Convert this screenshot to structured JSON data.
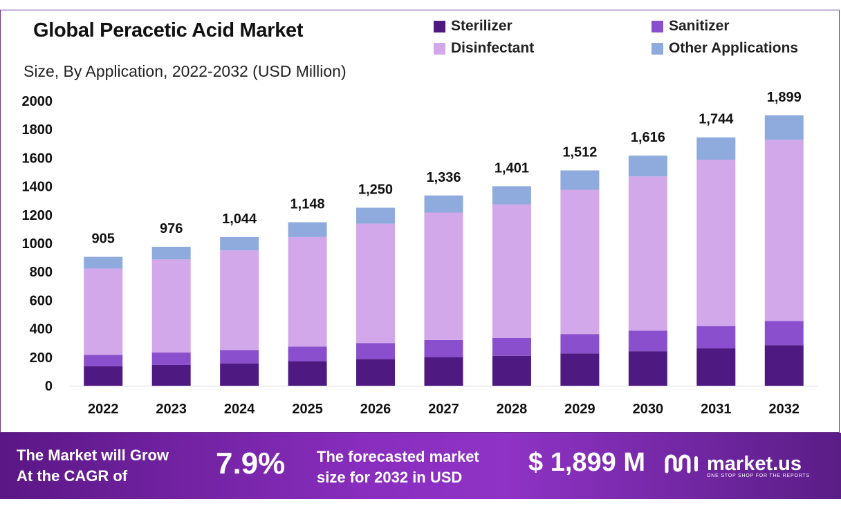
{
  "chart_data": {
    "type": "bar",
    "stacked": true,
    "title": "Global Peracetic Acid Market",
    "subtitle": "Size, By Application, 2022-2032 (USD Million)",
    "xlabel": "",
    "ylabel": "",
    "ylim": [
      0,
      2000
    ],
    "yticks": [
      0,
      200,
      400,
      600,
      800,
      1000,
      1200,
      1400,
      1600,
      1800,
      2000
    ],
    "categories": [
      "2022",
      "2023",
      "2024",
      "2025",
      "2026",
      "2027",
      "2028",
      "2029",
      "2030",
      "2031",
      "2032"
    ],
    "series": [
      {
        "name": "Sterilizer",
        "color": "#4e1a82",
        "values": [
          136,
          146,
          157,
          172,
          188,
          201,
          210,
          227,
          242,
          262,
          285
        ]
      },
      {
        "name": "Sanitizer",
        "color": "#8a4fcc",
        "values": [
          81,
          88,
          94,
          103,
          112,
          120,
          126,
          136,
          145,
          157,
          170
        ]
      },
      {
        "name": "Disinfectant",
        "color": "#d2a8ea",
        "values": [
          606,
          653,
          699,
          769,
          838,
          895,
          938,
          1013,
          1083,
          1168,
          1272
        ]
      },
      {
        "name": "Other Applications",
        "color": "#8faadc",
        "values": [
          82,
          89,
          94,
          104,
          112,
          120,
          127,
          136,
          146,
          157,
          172
        ]
      }
    ],
    "totals": [
      "905",
      "976",
      "1,044",
      "1,148",
      "1,250",
      "1,336",
      "1,401",
      "1,512",
      "1,616",
      "1,744",
      "1,899"
    ],
    "legend_position": "top-right",
    "grid": false
  },
  "footer": {
    "cagr_line1": "The Market will Grow",
    "cagr_line2": "At the CAGR of",
    "cagr_value": "7.9%",
    "forecast_line1": "The forecasted market",
    "forecast_line2": "size for 2032 in USD",
    "forecast_value": "$ 1,899 M",
    "brand": "market.us",
    "tagline": "ONE STOP SHOP FOR THE REPORTS"
  }
}
